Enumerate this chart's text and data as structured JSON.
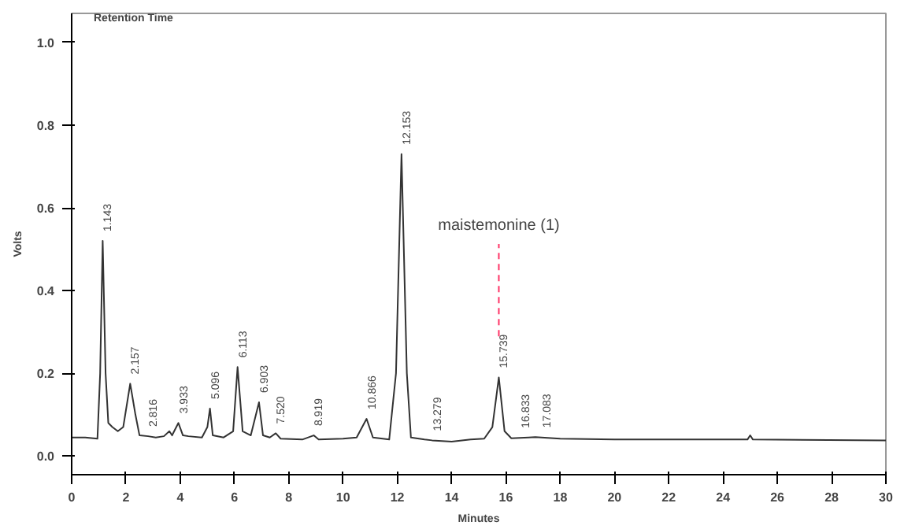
{
  "chart_data": {
    "type": "line",
    "title": "Retention Time",
    "xlabel": "Minutes",
    "ylabel": "Volts",
    "x": [
      0,
      0.5,
      0.95,
      1.05,
      1.143,
      1.25,
      1.35,
      1.5,
      1.7,
      1.9,
      2.157,
      2.35,
      2.5,
      2.816,
      3.1,
      3.4,
      3.6,
      3.7,
      3.933,
      4.1,
      4.3,
      4.8,
      5.0,
      5.096,
      5.2,
      5.6,
      5.95,
      6.113,
      6.3,
      6.6,
      6.903,
      7.05,
      7.3,
      7.52,
      7.7,
      8.5,
      8.919,
      9.1,
      10,
      10.5,
      10.866,
      11.1,
      11.7,
      11.95,
      12.153,
      12.35,
      12.5,
      13,
      13.279,
      14,
      14.7,
      15.2,
      15.5,
      15.739,
      15.95,
      16.2,
      16.833,
      17.083,
      18,
      20,
      24.9,
      25,
      25.1,
      30
    ],
    "series": [
      {
        "color": "#333333",
        "values": [
          0.045,
          0.045,
          0.042,
          0.2,
          0.52,
          0.2,
          0.08,
          0.07,
          0.06,
          0.07,
          0.175,
          0.1,
          0.05,
          0.048,
          0.045,
          0.048,
          0.06,
          0.05,
          0.08,
          0.05,
          0.048,
          0.045,
          0.07,
          0.115,
          0.05,
          0.045,
          0.06,
          0.215,
          0.06,
          0.05,
          0.13,
          0.05,
          0.045,
          0.055,
          0.042,
          0.04,
          0.05,
          0.04,
          0.042,
          0.045,
          0.09,
          0.045,
          0.04,
          0.2,
          0.73,
          0.2,
          0.045,
          0.04,
          0.038,
          0.035,
          0.04,
          0.042,
          0.07,
          0.19,
          0.06,
          0.043,
          0.045,
          0.046,
          0.042,
          0.04,
          0.04,
          0.05,
          0.04,
          0.038
        ]
      }
    ],
    "xlim": [
      0,
      30
    ],
    "xticks": [
      0,
      2,
      4,
      6,
      8,
      10,
      12,
      14,
      16,
      18,
      20,
      22,
      24,
      26,
      28,
      30
    ],
    "ylim": [
      -0.045,
      1.07
    ],
    "yticks": [
      {
        "value": 0,
        "label": "0.0"
      },
      {
        "value": 0.2,
        "label": "0.2"
      },
      {
        "value": 0.4,
        "label": "0.4"
      },
      {
        "value": 0.6,
        "label": "0.6"
      },
      {
        "value": 0.8,
        "label": "0.8"
      },
      {
        "value": 1,
        "label": "1.0"
      }
    ],
    "annotations": [
      {
        "text": "1.143",
        "x": 1.143,
        "y": 0.52
      },
      {
        "text": "2.157",
        "x": 2.157,
        "y": 0.175
      },
      {
        "text": "2.816",
        "x": 2.816,
        "y": 0.048
      },
      {
        "text": "3.933",
        "x": 3.933,
        "y": 0.08
      },
      {
        "text": "5.096",
        "x": 5.096,
        "y": 0.115
      },
      {
        "text": "6.113",
        "x": 6.113,
        "y": 0.215
      },
      {
        "text": "6.903",
        "x": 6.903,
        "y": 0.13
      },
      {
        "text": "7.520",
        "x": 7.52,
        "y": 0.055
      },
      {
        "text": "8.919",
        "x": 8.919,
        "y": 0.05
      },
      {
        "text": "10.866",
        "x": 10.866,
        "y": 0.09
      },
      {
        "text": "12.153",
        "x": 12.153,
        "y": 0.73
      },
      {
        "text": "13.279",
        "x": 13.279,
        "y": 0.038
      },
      {
        "text": "15.739",
        "x": 15.739,
        "y": 0.19
      },
      {
        "text": "16.833",
        "x": 16.833,
        "y": 0.045
      },
      {
        "text": "17.083",
        "x": 17.083,
        "y": 0.046
      }
    ],
    "ref_lines": [
      {
        "axis": "x",
        "value": 15.739,
        "label": "maistemonine (1)",
        "color": "#ff3366",
        "line_style": "dashed"
      }
    ],
    "grid": false
  }
}
